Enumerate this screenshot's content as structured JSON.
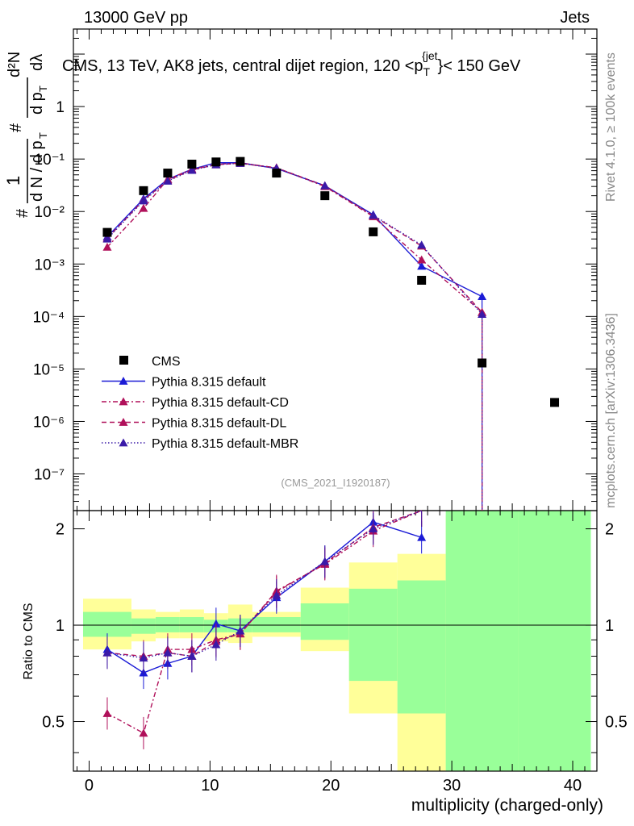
{
  "header": {
    "left": "13000 GeV pp",
    "right": "Jets"
  },
  "side_labels": {
    "rivet": "Rivet 4.1.0, ≥ 100k events",
    "mcplots": "mcplots.cern.ch [arXiv:1306.3436]"
  },
  "chart_data": {
    "type": "scatter",
    "title": "CMS, 13 TeV, AK8 jets, central dijet region, 120 < p_T^{jet} < 150 GeV",
    "title_parts": {
      "main": "CMS, 13 TeV, AK8 jets, central dijet region, 120 <p",
      "sub": "T",
      "sup": "{jet",
      "tail": "}< 150 GeV"
    },
    "watermark": "(CMS_2021_I1920187)",
    "xlabel": "multiplicity (charged-only)",
    "ylabel_top": "1/dN/dp_T  d^2N/dp_T dlambda",
    "ylabel_parts": {
      "frac1_num": "1",
      "frac1_den": "d N / d p",
      "frac1_sub": "T",
      "hash": "#",
      "frac2_num": "d²N",
      "frac2_den": "d p",
      "frac2_sub": "T",
      "frac2_tail": "dλ"
    },
    "ylabel_ratio": "Ratio to CMS",
    "xlim": [
      -1.3,
      42
    ],
    "ylim_top": [
      2e-08,
      30
    ],
    "ylim_ratio": [
      0.35,
      2.28
    ],
    "x_ticks": [
      "0",
      "10",
      "20",
      "30",
      "40"
    ],
    "y_ticks_top": [
      "10⁻⁷",
      "10⁻⁶",
      "10⁻⁵",
      "10⁻⁴",
      "10⁻³",
      "10⁻²",
      "10⁻¹",
      "1"
    ],
    "y_ticks_ratio": [
      "0.5",
      "1",
      "2"
    ],
    "cms": {
      "name": "CMS",
      "x": [
        1.5,
        4.5,
        6.5,
        8.5,
        10.5,
        12.5,
        15.5,
        19.5,
        23.5,
        27.5,
        32.5,
        38.5
      ],
      "y": [
        0.004,
        0.025,
        0.054,
        0.08,
        0.088,
        0.09,
        0.054,
        0.02,
        0.0041,
        0.00049,
        1.3e-05,
        2.3e-06
      ]
    },
    "series": [
      {
        "name": "Pythia 8.315 default",
        "color": "#1b1bd6",
        "dash": "",
        "x": [
          1.5,
          4.5,
          6.5,
          8.5,
          10.5,
          12.5,
          15.5,
          19.5,
          23.5,
          27.5,
          32.5
        ],
        "y": [
          0.0033,
          0.0175,
          0.041,
          0.064,
          0.085,
          0.085,
          0.066,
          0.031,
          0.0087,
          0.00091,
          0.00024
        ],
        "ratio": [
          0.84,
          0.71,
          0.76,
          0.8,
          1.01,
          0.96,
          1.22,
          1.58,
          2.1,
          1.88,
          null
        ]
      },
      {
        "name": "Pythia 8.315 default-CD",
        "color": "#b0105a",
        "dash": "6,3,2,3",
        "x": [
          1.5,
          4.5,
          6.5,
          8.5,
          10.5,
          12.5,
          15.5,
          19.5,
          23.5,
          27.5,
          32.5
        ],
        "y": [
          0.0021,
          0.0115,
          0.041,
          0.064,
          0.079,
          0.084,
          0.068,
          0.03,
          0.008,
          0.0012,
          0.00012
        ],
        "ratio": [
          0.53,
          0.46,
          0.84,
          0.84,
          0.9,
          0.94,
          1.28,
          1.55,
          1.97,
          2.3,
          null
        ]
      },
      {
        "name": "Pythia 8.315 default-DL",
        "color": "#b0105a",
        "dash": "6,4",
        "x": [
          1.5,
          4.5,
          6.5,
          8.5,
          10.5,
          12.5,
          15.5,
          19.5,
          23.5,
          27.5,
          32.5
        ],
        "y": [
          0.0031,
          0.0165,
          0.039,
          0.062,
          0.078,
          0.083,
          0.068,
          0.031,
          0.0083,
          0.0022,
          0.00012
        ],
        "ratio": [
          0.82,
          0.8,
          0.82,
          0.8,
          0.89,
          0.94,
          1.27,
          1.56,
          2.02,
          2.3,
          null
        ]
      },
      {
        "name": "Pythia 8.315 default-MBR",
        "color": "#3a1aa8",
        "dash": "1.5,2.5",
        "x": [
          1.5,
          4.5,
          6.5,
          8.5,
          10.5,
          12.5,
          15.5,
          19.5,
          23.5,
          27.5,
          32.5
        ],
        "y": [
          0.003,
          0.016,
          0.038,
          0.061,
          0.078,
          0.083,
          0.067,
          0.031,
          0.0085,
          0.0023,
          0.00011
        ],
        "ratio": [
          0.82,
          0.79,
          0.82,
          0.8,
          0.87,
          0.96,
          1.24,
          1.58,
          2.0,
          2.3,
          null
        ]
      }
    ],
    "bands": {
      "edges": [
        -0.5,
        3.5,
        5.5,
        7.5,
        9.5,
        11.5,
        13.5,
        17.5,
        21.5,
        25.5,
        29.5,
        35.5,
        41.5
      ],
      "green_lo": [
        0.92,
        0.94,
        0.95,
        0.95,
        0.95,
        0.95,
        0.95,
        0.9,
        0.67,
        0.53,
        0.28,
        0.28
      ],
      "green_hi": [
        1.1,
        1.05,
        1.06,
        1.06,
        1.04,
        1.05,
        1.06,
        1.17,
        1.3,
        1.38,
        2.28,
        2.28
      ],
      "yellow_lo": [
        0.84,
        0.89,
        0.91,
        0.91,
        0.89,
        0.88,
        0.92,
        0.83,
        0.53,
        0.35,
        0.28,
        0.28
      ],
      "yellow_hi": [
        1.21,
        1.12,
        1.1,
        1.12,
        1.09,
        1.16,
        1.1,
        1.31,
        1.57,
        1.67,
        2.2,
        2.28
      ]
    }
  }
}
